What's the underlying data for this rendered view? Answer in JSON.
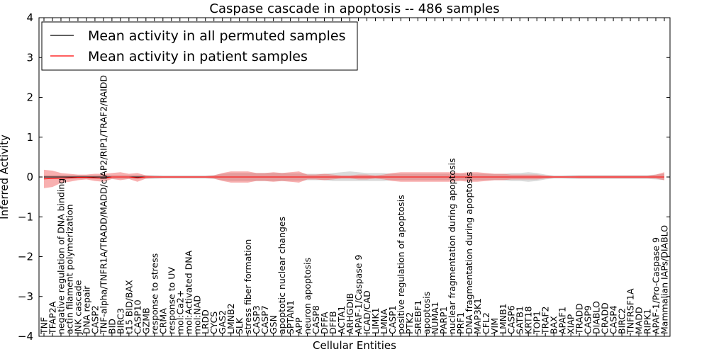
{
  "chart_data": {
    "type": "line",
    "title": "Caspase cascade in apoptosis -- 486 samples",
    "xlabel": "Cellular Entities",
    "ylabel": "Inferred Activity",
    "ylim": [
      -4,
      4
    ],
    "yticks": [
      "4",
      "3",
      "2",
      "1",
      "0",
      "−1",
      "−2",
      "−3",
      "−4"
    ],
    "ytick_values": [
      4,
      3,
      2,
      1,
      0,
      -1,
      -2,
      -3,
      -4
    ],
    "grid": false,
    "legend_position": "top-left",
    "categories": [
      "TNF",
      "TFAP2A",
      "negative regulation of DNA binding",
      "actin filament polymerization",
      "JNK cascade",
      "DNA repair",
      "CASP2",
      "TNF-alpha/TNFR1A/TRADD/MADD/cIAP2/RIP1/TRAF2/RAIDD",
      "BID",
      "BIRC3",
      "t15 BID/BAX",
      "CASP10",
      "GZMB",
      "response to stress",
      "CRMA",
      "response to UV",
      "mol:Ca2+",
      "mol:Activated DNA",
      "mol:NAD",
      "LRDD",
      "CYCS",
      "GAS2",
      "LMNB2",
      "SLK",
      "stress fiber formation",
      "CASP3",
      "CASP7",
      "GSN",
      "apoptotic nuclear changes",
      "SPTAN1",
      "APP",
      "neuron apoptosis",
      "CASP8",
      "DFFA",
      "DFFB",
      "ACTA1",
      "ARHGDIB",
      "APAF-1/Caspase 9",
      "ICAD/CAD",
      "LIMK1",
      "LMNA",
      "CASP1",
      "positive regulation of apoptosis",
      "PTK2",
      "SREBF1",
      "apoptosis",
      "NUMA1",
      "PARP1",
      "nuclear fragmentation during apoptosis",
      "PRF1",
      "DNA fragmentation during apoptosis",
      "MAP3K1",
      "CFL2",
      "VIM",
      "LMNB1",
      "CASP6",
      "SATB1",
      "KRT18",
      "TOP1",
      "TRAF2",
      "BAX",
      "APAF1",
      "XIAP",
      "TRADD",
      "CASP9",
      "DIABLO",
      "CRADD",
      "CASP4",
      "BIRC2",
      "TNFRSF1A",
      "MADD",
      "RIPK1",
      "APAF-1/Pro-Caspase 9",
      "Mammalian IAPs/DIABLO"
    ],
    "series": [
      {
        "name": "Mean activity in all permuted samples",
        "color": "#000000",
        "values": [
          0.0,
          0.0,
          0.0,
          0.0,
          0.0,
          0.0,
          0.0,
          0.0,
          0.0,
          0.0,
          0.0,
          0.0,
          0.0,
          0.0,
          0.0,
          0.0,
          0.0,
          0.0,
          0.0,
          0.0,
          0.0,
          0.0,
          0.0,
          0.0,
          0.0,
          0.0,
          0.0,
          0.0,
          0.0,
          0.0,
          0.0,
          0.0,
          0.0,
          0.0,
          0.0,
          0.0,
          0.0,
          0.0,
          0.0,
          0.0,
          0.0,
          0.0,
          0.0,
          0.0,
          0.0,
          0.0,
          0.0,
          0.0,
          0.0,
          0.0,
          0.0,
          0.0,
          0.0,
          0.0,
          0.0,
          0.0,
          0.0,
          0.0,
          0.0,
          0.0,
          0.0,
          0.0,
          0.0,
          0.0,
          0.0,
          0.0,
          0.0,
          0.0,
          0.0,
          0.0,
          0.0,
          0.0,
          0.0,
          0.0
        ],
        "lower": [
          -0.05,
          -0.05,
          -0.05,
          -0.05,
          -0.05,
          -0.05,
          -0.05,
          -0.05,
          -0.05,
          -0.05,
          -0.05,
          -0.05,
          -0.05,
          -0.05,
          -0.04,
          -0.04,
          -0.04,
          -0.04,
          -0.04,
          -0.04,
          -0.05,
          -0.08,
          -0.1,
          -0.1,
          -0.1,
          -0.1,
          -0.1,
          -0.1,
          -0.1,
          -0.09,
          -0.09,
          -0.08,
          -0.08,
          -0.08,
          -0.1,
          -0.1,
          -0.1,
          -0.1,
          -0.1,
          -0.1,
          -0.1,
          -0.08,
          -0.08,
          -0.08,
          -0.08,
          -0.08,
          -0.08,
          -0.08,
          -0.08,
          -0.08,
          -0.08,
          -0.08,
          -0.08,
          -0.08,
          -0.08,
          -0.1,
          -0.1,
          -0.12,
          -0.1,
          -0.06,
          -0.04,
          -0.04,
          -0.05,
          -0.05,
          -0.05,
          -0.05,
          -0.05,
          -0.05,
          -0.05,
          -0.05,
          -0.05,
          -0.05,
          -0.06,
          -0.08
        ],
        "upper": [
          0.05,
          0.05,
          0.05,
          0.05,
          0.05,
          0.05,
          0.05,
          0.05,
          0.05,
          0.05,
          0.05,
          0.05,
          0.05,
          0.05,
          0.04,
          0.04,
          0.04,
          0.04,
          0.04,
          0.04,
          0.05,
          0.08,
          0.1,
          0.1,
          0.1,
          0.1,
          0.1,
          0.1,
          0.1,
          0.09,
          0.09,
          0.08,
          0.08,
          0.08,
          0.1,
          0.12,
          0.14,
          0.12,
          0.1,
          0.1,
          0.1,
          0.08,
          0.08,
          0.08,
          0.08,
          0.08,
          0.08,
          0.08,
          0.08,
          0.08,
          0.08,
          0.08,
          0.08,
          0.08,
          0.08,
          0.1,
          0.1,
          0.12,
          0.1,
          0.06,
          0.04,
          0.04,
          0.05,
          0.05,
          0.05,
          0.05,
          0.05,
          0.05,
          0.05,
          0.05,
          0.05,
          0.05,
          0.06,
          0.08
        ]
      },
      {
        "name": "Mean activity in patient samples",
        "color": "#ff0000",
        "values": [
          -0.05,
          -0.04,
          -0.03,
          -0.02,
          -0.01,
          -0.01,
          -0.02,
          -0.03,
          0.0,
          0.0,
          0.0,
          -0.02,
          0.0,
          0.0,
          0.0,
          0.0,
          0.0,
          0.0,
          0.0,
          0.0,
          0.0,
          0.0,
          0.0,
          0.0,
          0.0,
          0.0,
          0.0,
          0.0,
          0.0,
          0.0,
          0.0,
          0.0,
          0.0,
          0.0,
          0.0,
          0.0,
          0.0,
          0.0,
          0.0,
          0.0,
          0.0,
          0.0,
          0.0,
          0.0,
          0.0,
          0.0,
          0.0,
          0.0,
          0.0,
          0.0,
          0.0,
          0.0,
          0.0,
          0.0,
          0.0,
          0.0,
          0.0,
          0.0,
          0.0,
          0.0,
          0.0,
          0.0,
          0.0,
          0.0,
          0.0,
          0.0,
          0.0,
          0.0,
          0.0,
          0.0,
          0.0,
          0.0,
          0.0,
          0.0
        ],
        "lower": [
          -0.28,
          -0.25,
          -0.15,
          -0.12,
          -0.08,
          -0.06,
          -0.1,
          -0.12,
          -0.05,
          -0.08,
          -0.05,
          -0.12,
          -0.04,
          -0.02,
          -0.02,
          -0.02,
          -0.02,
          -0.02,
          -0.02,
          -0.02,
          -0.04,
          -0.1,
          -0.14,
          -0.14,
          -0.14,
          -0.1,
          -0.1,
          -0.12,
          -0.1,
          -0.12,
          -0.14,
          -0.06,
          -0.06,
          -0.08,
          -0.06,
          -0.04,
          -0.04,
          -0.06,
          -0.06,
          -0.04,
          -0.06,
          -0.1,
          -0.12,
          -0.12,
          -0.12,
          -0.12,
          -0.12,
          -0.12,
          -0.12,
          -0.1,
          -0.12,
          -0.12,
          -0.1,
          -0.08,
          -0.08,
          -0.06,
          -0.06,
          -0.06,
          -0.06,
          -0.04,
          -0.02,
          -0.02,
          -0.02,
          -0.03,
          -0.03,
          -0.03,
          -0.03,
          -0.03,
          -0.03,
          -0.03,
          -0.03,
          -0.03,
          -0.04,
          -0.08
        ],
        "upper": [
          0.18,
          0.16,
          0.1,
          0.08,
          0.06,
          0.06,
          0.08,
          0.08,
          0.1,
          0.12,
          0.08,
          0.1,
          0.04,
          0.02,
          0.02,
          0.02,
          0.02,
          0.02,
          0.02,
          0.02,
          0.04,
          0.1,
          0.14,
          0.14,
          0.14,
          0.1,
          0.1,
          0.12,
          0.1,
          0.12,
          0.14,
          0.06,
          0.06,
          0.08,
          0.06,
          0.04,
          0.04,
          0.06,
          0.06,
          0.04,
          0.06,
          0.1,
          0.12,
          0.12,
          0.12,
          0.12,
          0.12,
          0.12,
          0.12,
          0.1,
          0.12,
          0.12,
          0.1,
          0.08,
          0.08,
          0.06,
          0.06,
          0.06,
          0.06,
          0.04,
          0.02,
          0.02,
          0.02,
          0.03,
          0.03,
          0.03,
          0.03,
          0.03,
          0.03,
          0.03,
          0.03,
          0.03,
          0.06,
          0.12
        ]
      }
    ]
  }
}
